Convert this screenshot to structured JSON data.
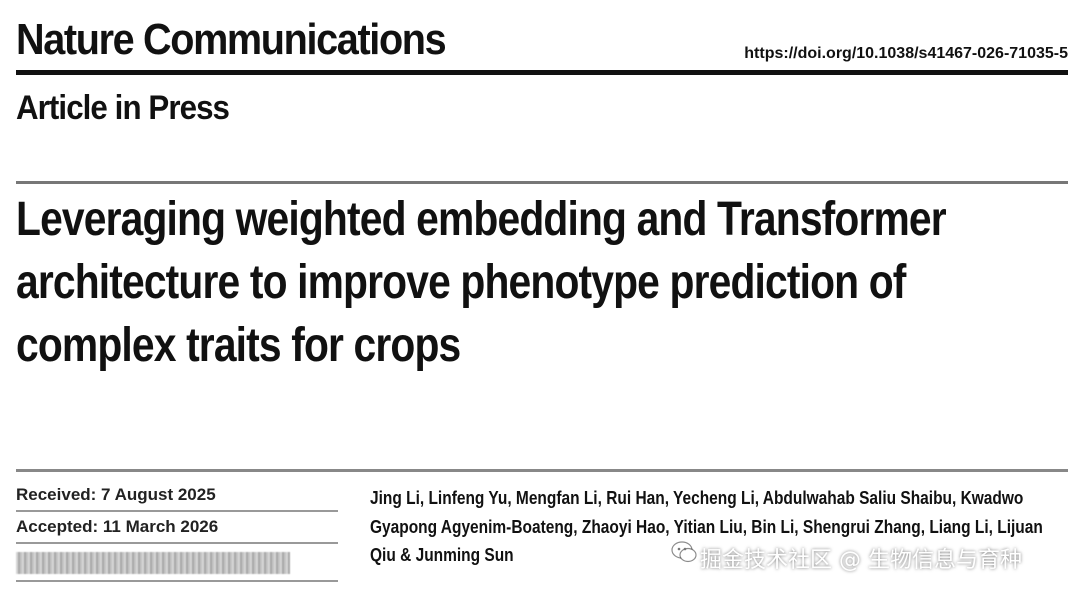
{
  "header": {
    "journal": "Nature Communications",
    "doi": "https://doi.org/10.1038/s41467-026-71035-5",
    "status": "Article in Press"
  },
  "article": {
    "title": "Leveraging weighted embedding and Transformer architecture to improve phenotype prediction of complex traits for crops",
    "received": "Received: 7 August 2025",
    "accepted": "Accepted: 11 March 2026",
    "authors": "Jing Li, Linfeng Yu, Mengfan Li, Rui Han, Yecheng Li, Abdulwahab Saliu Shaibu, Kwadwo Gyapong Agyenim-Boateng, Zhaoyi Hao, Yitian Liu, Bin Li, Shengrui Zhang, Liang Li, Lijuan Qiu & Junming Sun"
  },
  "watermark": {
    "text": "掘金技术社区 @ 生物信息与育种",
    "icon": "chat-bubble-icon"
  },
  "colors": {
    "text": "#111111",
    "rule": "#111111",
    "rule_grey": "#777777"
  }
}
